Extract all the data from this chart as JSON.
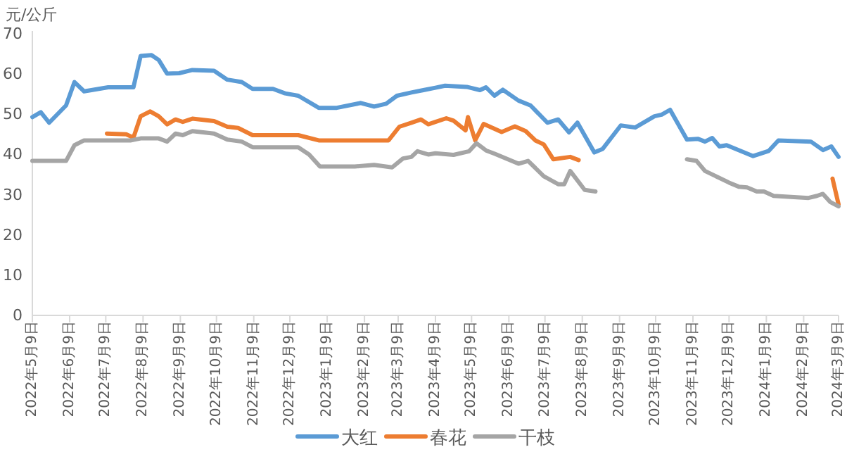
{
  "chart_data": {
    "type": "line",
    "ylabel": "元/公斤",
    "ylim": [
      0,
      70
    ],
    "yticks": [
      0,
      10,
      20,
      30,
      40,
      50,
      60,
      70
    ],
    "xlim": [
      "2022-05-09",
      "2024-03-09"
    ],
    "xticks": [
      {
        "value": "2022-05-09",
        "label": "2022年5月9日"
      },
      {
        "value": "2022-06-09",
        "label": "2022年6月9日"
      },
      {
        "value": "2022-07-09",
        "label": "2022年7月9日"
      },
      {
        "value": "2022-08-09",
        "label": "2022年8月9日"
      },
      {
        "value": "2022-09-09",
        "label": "2022年9月9日"
      },
      {
        "value": "2022-10-09",
        "label": "2022年10月9日"
      },
      {
        "value": "2022-11-09",
        "label": "2022年11月9日"
      },
      {
        "value": "2022-12-09",
        "label": "2022年12月9日"
      },
      {
        "value": "2023-01-09",
        "label": "2023年1月9日"
      },
      {
        "value": "2023-02-09",
        "label": "2023年2月9日"
      },
      {
        "value": "2023-03-09",
        "label": "2023年3月9日"
      },
      {
        "value": "2023-04-09",
        "label": "2023年4月9日"
      },
      {
        "value": "2023-05-09",
        "label": "2023年5月9日"
      },
      {
        "value": "2023-06-09",
        "label": "2023年6月9日"
      },
      {
        "value": "2023-07-09",
        "label": "2023年7月9日"
      },
      {
        "value": "2023-08-09",
        "label": "2023年8月9日"
      },
      {
        "value": "2023-09-09",
        "label": "2023年9月9日"
      },
      {
        "value": "2023-10-09",
        "label": "2023年10月9日"
      },
      {
        "value": "2023-11-09",
        "label": "2023年11月9日"
      },
      {
        "value": "2023-12-09",
        "label": "2023年12月9日"
      },
      {
        "value": "2024-01-09",
        "label": "2024年1月9日"
      },
      {
        "value": "2024-02-09",
        "label": "2024年2月9日"
      },
      {
        "value": "2024-03-09",
        "label": "2024年3月9日"
      }
    ],
    "legend": "bottom",
    "grid": false,
    "marker": "none",
    "line_style": "solid",
    "series": [
      {
        "name": "大红",
        "color": "#5b9bd5",
        "x": [
          "2022-05-09",
          "2022-05-16",
          "2022-05-23",
          "2022-06-06",
          "2022-06-13",
          "2022-06-21",
          "2022-07-11",
          "2022-08-01",
          "2022-08-07",
          "2022-08-16",
          "2022-08-22",
          "2022-08-29",
          "2022-09-08",
          "2022-09-19",
          "2022-10-07",
          "2022-10-18",
          "2022-10-30",
          "2022-11-08",
          "2022-11-25",
          "2022-12-05",
          "2022-12-16",
          "2023-01-02",
          "2023-01-17",
          "2023-02-06",
          "2023-02-17",
          "2023-02-27",
          "2023-03-08",
          "2023-03-20",
          "2023-03-30",
          "2023-04-09",
          "2023-04-17",
          "2023-05-05",
          "2023-05-16",
          "2023-05-21",
          "2023-05-28",
          "2023-06-04",
          "2023-06-17",
          "2023-06-27",
          "2023-07-11",
          "2023-07-20",
          "2023-07-29",
          "2023-08-05",
          "2023-08-19",
          "2023-08-26",
          "2023-09-10",
          "2023-09-22",
          "2023-10-08",
          "2023-10-14",
          "2023-10-21",
          "2023-11-04",
          "2023-11-13",
          "2023-11-19",
          "2023-11-25",
          "2023-12-01",
          "2023-12-07",
          "2023-12-29",
          "2024-01-11",
          "2024-01-19",
          "2024-02-15",
          "2024-02-25",
          "2024-03-03",
          "2024-03-09"
        ],
        "values": [
          49.3,
          50.5,
          47.9,
          52.2,
          58,
          55.7,
          56.7,
          56.7,
          64.5,
          64.7,
          63.5,
          60.1,
          60.2,
          61,
          60.8,
          58.6,
          58,
          56.3,
          56.3,
          55.2,
          54.6,
          51.6,
          51.6,
          52.8,
          51.9,
          52.6,
          54.6,
          55.4,
          56,
          56.6,
          57.1,
          56.8,
          56,
          56.7,
          54.6,
          56.1,
          53.4,
          52.2,
          47.9,
          48.7,
          45.5,
          47.9,
          40.5,
          41.4,
          47.2,
          46.7,
          49.5,
          49.9,
          51.1,
          43.7,
          43.9,
          43.2,
          44.1,
          42,
          42.3,
          39.6,
          40.9,
          43.5,
          43.2,
          41.1,
          42,
          39.4
        ]
      },
      {
        "name": "春花",
        "color": "#ed7d31",
        "x": [
          "2022-07-10",
          "2022-07-26",
          "2022-08-01",
          "2022-08-07",
          "2022-08-15",
          "2022-08-22",
          "2022-08-29",
          "2022-09-05",
          "2022-09-11",
          "2022-09-19",
          "2022-10-07",
          "2022-10-18",
          "2022-10-27",
          "2022-11-08",
          "2022-12-16",
          "2023-01-02",
          "2023-03-01",
          "2023-03-10",
          "2023-03-20",
          "2023-03-28",
          "2023-04-03",
          "2023-04-09",
          "2023-04-18",
          "2023-04-24",
          "2023-05-04",
          "2023-05-06",
          "2023-05-12",
          "2023-05-19",
          "2023-06-03",
          "2023-06-14",
          "2023-06-23",
          "2023-07-01",
          "2023-07-08",
          "2023-07-16",
          "2023-07-30",
          "2023-08-06",
          null,
          "2024-03-04",
          "2024-03-09"
        ],
        "values": [
          45.2,
          45,
          44.2,
          49.5,
          50.7,
          49.5,
          47.5,
          48.7,
          48.1,
          48.9,
          48.3,
          46.9,
          46.6,
          44.8,
          44.8,
          43.5,
          43.5,
          46.9,
          47.9,
          48.7,
          47.5,
          48.1,
          49,
          48.4,
          46,
          49.3,
          43.5,
          47.6,
          45.6,
          47,
          45.8,
          43.5,
          42.5,
          38.8,
          39.4,
          38.6,
          null,
          34,
          27.6
        ]
      },
      {
        "name": "干枝",
        "color": "#a5a5a5",
        "x": [
          "2022-05-09",
          "2022-06-06",
          "2022-06-13",
          "2022-06-21",
          "2022-07-30",
          "2022-08-07",
          "2022-08-22",
          "2022-08-29",
          "2022-09-05",
          "2022-09-11",
          "2022-09-19",
          "2022-10-07",
          "2022-10-18",
          "2022-10-30",
          "2022-11-08",
          "2022-12-16",
          "2022-12-25",
          "2023-01-03",
          "2023-02-01",
          "2023-02-17",
          "2023-03-04",
          "2023-03-13",
          "2023-03-20",
          "2023-03-25",
          "2023-04-03",
          "2023-04-09",
          "2023-04-24",
          "2023-05-07",
          "2023-05-13",
          "2023-05-21",
          "2023-05-28",
          "2023-06-17",
          "2023-06-25",
          "2023-07-08",
          "2023-07-20",
          "2023-07-25",
          "2023-07-30",
          "2023-08-11",
          "2023-08-20",
          null,
          "2023-11-04",
          "2023-11-12",
          "2023-11-19",
          "2023-12-09",
          "2023-12-17",
          "2023-12-24",
          "2024-01-01",
          "2024-01-07",
          "2024-01-15",
          "2024-02-13",
          "2024-02-20",
          "2024-02-25",
          "2024-03-02",
          "2024-03-09"
        ],
        "values": [
          38.4,
          38.4,
          42.3,
          43.5,
          43.5,
          44,
          44,
          43.2,
          45.2,
          44.8,
          45.8,
          45.2,
          43.7,
          43.2,
          41.8,
          41.8,
          40,
          37,
          37,
          37.4,
          36.8,
          39,
          39.4,
          40.8,
          40,
          40.3,
          39.9,
          40.8,
          42.8,
          41,
          40.2,
          37.7,
          38.4,
          34.6,
          32.6,
          32.6,
          35.9,
          31.2,
          30.8,
          null,
          38.8,
          38.4,
          35.9,
          33,
          32,
          31.8,
          30.8,
          30.8,
          29.7,
          29.2,
          29.7,
          30.2,
          28.2,
          27.1
        ]
      }
    ]
  }
}
